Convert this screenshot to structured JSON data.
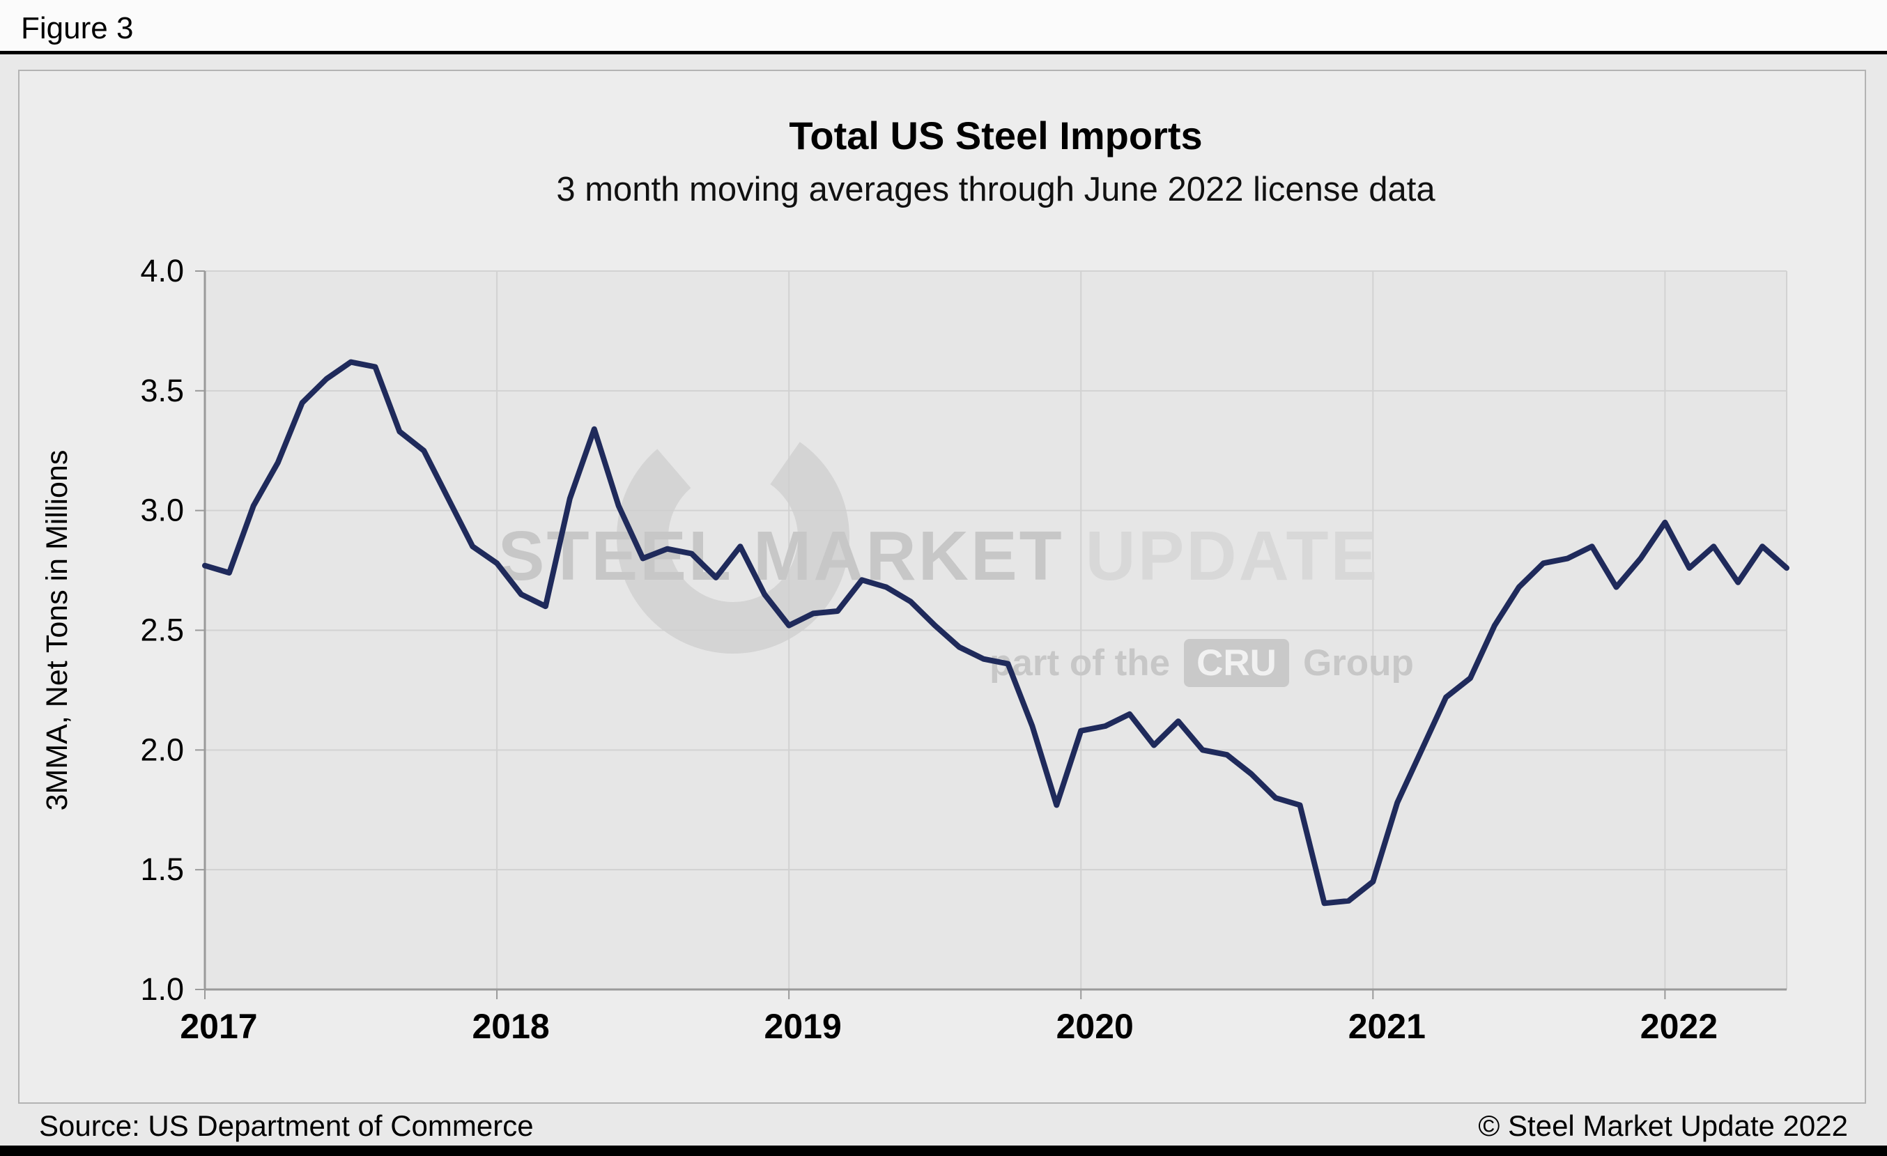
{
  "figure_label": "Figure 3",
  "chart_data": {
    "type": "line",
    "title": "Total US Steel Imports",
    "subtitle": "3 month moving averages through June 2022 license data",
    "ylabel": "3MMA, Net Tons in Millions",
    "xlabel": "",
    "ylim": [
      1.0,
      4.0
    ],
    "yticks": [
      1.0,
      1.5,
      2.0,
      2.5,
      3.0,
      3.5,
      4.0
    ],
    "xticks": [
      2017,
      2018,
      2019,
      2020,
      2021,
      2022
    ],
    "frequency": "monthly",
    "x_start": "2017-01",
    "x_end": "2022-06",
    "grid": true,
    "legend": "none",
    "series": [
      {
        "name": "Total US steel imports, 3-month moving average (million net tons)",
        "color": "#1F2A5B",
        "values": [
          2.77,
          2.74,
          3.02,
          3.2,
          3.45,
          3.55,
          3.62,
          3.6,
          3.33,
          3.25,
          3.05,
          2.85,
          2.78,
          2.65,
          2.6,
          3.05,
          3.34,
          3.02,
          2.8,
          2.84,
          2.82,
          2.72,
          2.85,
          2.65,
          2.52,
          2.57,
          2.58,
          2.71,
          2.68,
          2.62,
          2.52,
          2.43,
          2.38,
          2.36,
          2.1,
          1.77,
          2.08,
          2.1,
          2.15,
          2.02,
          2.12,
          2.0,
          1.98,
          1.9,
          1.8,
          1.77,
          1.36,
          1.37,
          1.45,
          1.78,
          2.0,
          2.22,
          2.3,
          2.52,
          2.68,
          2.78,
          2.8,
          2.85,
          2.68,
          2.8,
          2.95,
          2.76,
          2.85,
          2.7,
          2.85,
          2.76
        ]
      }
    ],
    "colors": {
      "line": "#1F2A5B",
      "plot_bg": "#E6E6E6",
      "grid": "#D2D2D2",
      "axis": "#9A9A9A",
      "panel_bg": "#EDEDED",
      "page_bg": "#E9E9E9",
      "tick_text": "#000000"
    }
  },
  "watermark": {
    "line1_bold": "STEEL MARKET",
    "line1_light": " UPDATE",
    "line2_prefix": "part of the",
    "line2_box": "CRU",
    "line2_suffix": "Group"
  },
  "footer": {
    "source": "Source: US Department of Commerce",
    "copyright": "© Steel Market Update 2022"
  }
}
